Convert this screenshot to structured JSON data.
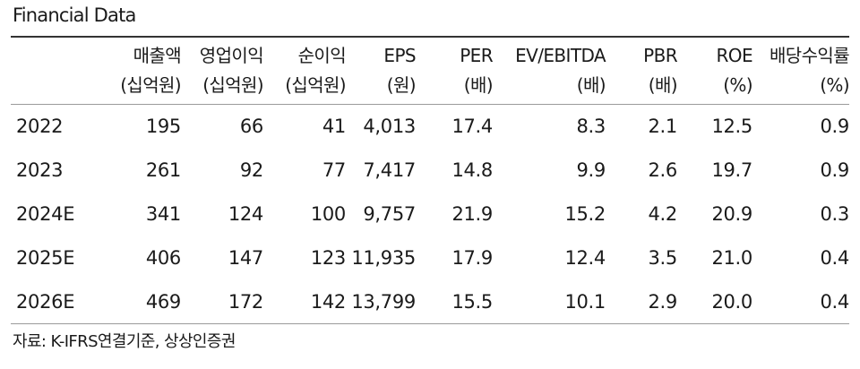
{
  "title": "Financial Data",
  "columns": [
    {
      "line1": "매출액",
      "line2": "(십억원)"
    },
    {
      "line1": "영업이익",
      "line2": "(십억원)"
    },
    {
      "line1": "순이익",
      "line2": "(십억원)"
    },
    {
      "line1": "EPS",
      "line2": "(원)"
    },
    {
      "line1": "PER",
      "line2": "(배)"
    },
    {
      "line1": "EV/EBITDA",
      "line2": "(배)"
    },
    {
      "line1": "PBR",
      "line2": "(배)"
    },
    {
      "line1": "ROE",
      "line2": "(%)"
    },
    {
      "line1": "배당수익률",
      "line2": "(%)"
    }
  ],
  "rows": [
    {
      "year": "2022",
      "values": [
        "195",
        "66",
        "41",
        "4,013",
        "17.4",
        "8.3",
        "2.1",
        "12.5",
        "0.9"
      ]
    },
    {
      "year": "2023",
      "values": [
        "261",
        "92",
        "77",
        "7,417",
        "14.8",
        "9.9",
        "2.6",
        "19.7",
        "0.9"
      ]
    },
    {
      "year": "2024E",
      "values": [
        "341",
        "124",
        "100",
        "9,757",
        "21.9",
        "15.2",
        "4.2",
        "20.9",
        "0.3"
      ]
    },
    {
      "year": "2025E",
      "values": [
        "406",
        "147",
        "123",
        "11,935",
        "17.9",
        "12.4",
        "3.5",
        "21.0",
        "0.4"
      ]
    },
    {
      "year": "2026E",
      "values": [
        "469",
        "172",
        "142",
        "13,799",
        "15.5",
        "10.1",
        "2.9",
        "20.0",
        "0.4"
      ]
    }
  ],
  "source": "자료: K-IFRS연결기준, 상상인증권"
}
